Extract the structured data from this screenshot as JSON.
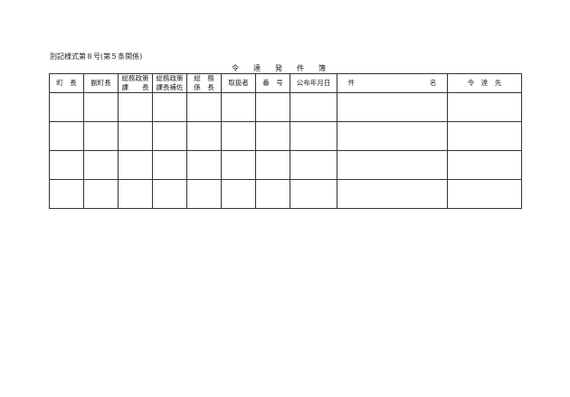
{
  "form_label": "別記様式第８号(第５条関係)",
  "title_chars": [
    "令",
    "達",
    "発",
    "件",
    "簿"
  ],
  "columns": [
    {
      "line1": "町　長",
      "line2": ""
    },
    {
      "line1": "副町長",
      "line2": ""
    },
    {
      "line1": "総務政策",
      "line2": "課　　長"
    },
    {
      "line1": "総務政策",
      "line2": "課長補佐"
    },
    {
      "line1": "総　務",
      "line2": "係　長"
    },
    {
      "line1": "取扱者",
      "line2": ""
    },
    {
      "line1": "番　号",
      "line2": ""
    },
    {
      "line1": "公布年月日",
      "line2": ""
    },
    {
      "line1": "件",
      "line2": "名"
    },
    {
      "line1": "令　達　先",
      "line2": ""
    }
  ],
  "row_count": 4
}
